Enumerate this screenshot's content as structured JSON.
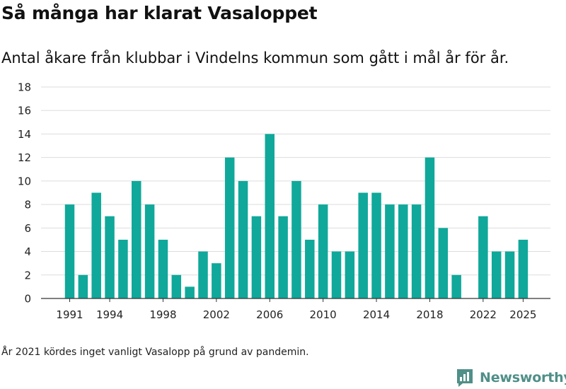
{
  "title": "Så många har klarat Vasaloppet",
  "subtitle": "Antal åkare från klubbar i Vindelns kommun som gått i mål år för år.",
  "footnote": "År 2021 kördes inget vanligt Vasalopp på grund av pandemin.",
  "brand": {
    "name": "Newsworthy",
    "icon": "newsworthy-logo-icon"
  },
  "colors": {
    "bar": "#10a89a",
    "grid": "#dddddd",
    "text": "#222222",
    "brand": "#4f8f88"
  },
  "chart_data": {
    "type": "bar",
    "categories": [
      1991,
      1992,
      1993,
      1994,
      1995,
      1996,
      1997,
      1998,
      1999,
      2000,
      2001,
      2002,
      2003,
      2004,
      2005,
      2006,
      2007,
      2008,
      2009,
      2010,
      2011,
      2012,
      2013,
      2014,
      2015,
      2016,
      2017,
      2018,
      2019,
      2020,
      2021,
      2022,
      2023,
      2024,
      2025
    ],
    "values": [
      8,
      2,
      9,
      7,
      5,
      10,
      8,
      5,
      2,
      1,
      4,
      3,
      12,
      10,
      7,
      14,
      7,
      10,
      5,
      8,
      4,
      4,
      9,
      9,
      8,
      8,
      8,
      12,
      6,
      2,
      0,
      7,
      4,
      4,
      5
    ],
    "x_tick_labels": [
      "1991",
      "1994",
      "1998",
      "2002",
      "2006",
      "2010",
      "2014",
      "2018",
      "2022",
      "2025"
    ],
    "y_ticks": [
      0,
      2,
      4,
      6,
      8,
      10,
      12,
      14,
      16,
      18
    ],
    "ylim": [
      0,
      18
    ],
    "grid": "horizontal",
    "legend": "none"
  }
}
